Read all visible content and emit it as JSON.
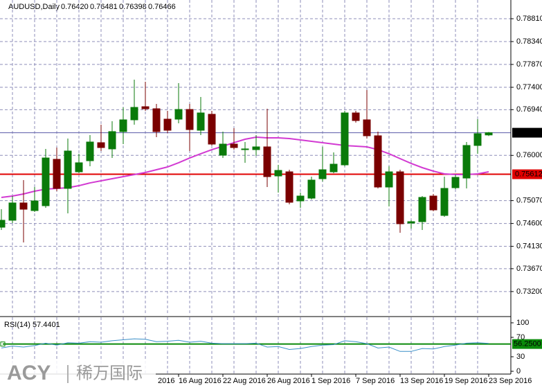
{
  "chart_data": {
    "type": "candlestick",
    "title": "AUDUSD,Daily",
    "header_values": [
      "0.76420",
      "0.76481",
      "0.76398",
      "0.76466"
    ],
    "categories": [
      null,
      null,
      null,
      null,
      null,
      null,
      null,
      null,
      null,
      null,
      null,
      null,
      "2016",
      null,
      null,
      null,
      "16 Aug 2016",
      null,
      null,
      null,
      "22 Aug 2016",
      null,
      null,
      null,
      "26 Aug 2016",
      null,
      null,
      null,
      "1 Sep 2016",
      null,
      null,
      null,
      "7 Sep 2016",
      null,
      null,
      null,
      "13 Sep 2016",
      null,
      null,
      null,
      "19 Sep 2016",
      null,
      null,
      null,
      "23 Sep 2016"
    ],
    "open": [
      0.74523,
      0.74666,
      0.75022,
      0.74865,
      0.74965,
      0.75919,
      0.75321,
      0.75662,
      0.7589,
      0.76261,
      0.76133,
      0.76489,
      0.76731,
      0.77001,
      0.76959,
      0.76745,
      0.76745,
      0.76944,
      0.76517,
      0.76845,
      0.76004,
      0.76232,
      0.76118,
      0.76118,
      0.76175,
      0.75577,
      0.75662,
      0.75064,
      0.75121,
      0.7552,
      0.75662,
      0.75805,
      0.76873,
      0.76731,
      0.76403,
      0.75349,
      0.75662,
      0.74609,
      0.74637,
      0.75164,
      0.74765,
      0.75335,
      0.75534,
      0.76204,
      0.7642
    ],
    "high": [
      0.74893,
      0.75164,
      0.75492,
      0.75349,
      0.76133,
      0.76161,
      0.76346,
      0.76033,
      0.76417,
      0.76631,
      0.76702,
      0.76987,
      0.77557,
      0.77514,
      0.77058,
      0.76916,
      0.77486,
      0.77058,
      0.77201,
      0.76916,
      0.76489,
      0.7656,
      0.76275,
      0.76417,
      0.76959,
      0.75805,
      0.75705,
      0.75235,
      0.75563,
      0.76175,
      0.76061,
      0.76916,
      0.76916,
      0.77343,
      0.76489,
      0.75776,
      0.75705,
      0.74666,
      0.75164,
      0.75207,
      0.75563,
      0.75605,
      0.76275,
      0.76745,
      0.76481
    ],
    "low": [
      0.74466,
      0.74609,
      0.7421,
      0.74837,
      0.74922,
      0.75264,
      0.74808,
      0.75634,
      0.75776,
      0.7609,
      0.75947,
      0.76232,
      0.76631,
      0.76916,
      0.76375,
      0.7646,
      0.76659,
      0.7609,
      0.76417,
      0.76204,
      0.75947,
      0.76118,
      0.75848,
      0.7599,
      0.75349,
      0.75235,
      0.74993,
      0.74922,
      0.75093,
      0.75463,
      0.75634,
      0.75776,
      0.76674,
      0.76346,
      0.75321,
      0.7495,
      0.74409,
      0.74495,
      0.74466,
      0.74851,
      0.74737,
      0.75306,
      0.75321,
      0.76033,
      0.76398
    ],
    "close": [
      0.74666,
      0.75022,
      0.74893,
      0.75064,
      0.75947,
      0.75321,
      0.7609,
      0.75848,
      0.76275,
      0.76161,
      0.76489,
      0.76731,
      0.76987,
      0.76959,
      0.76489,
      0.76517,
      0.76944,
      0.76531,
      0.76873,
      0.76232,
      0.76232,
      0.76161,
      0.76133,
      0.76175,
      0.75563,
      0.75691,
      0.75036,
      0.75164,
      0.75492,
      0.75705,
      0.75819,
      0.76873,
      0.76716,
      0.76403,
      0.75349,
      0.75662,
      0.74594,
      0.74637,
      0.75136,
      0.74879,
      0.75321,
      0.75549,
      0.76204,
      0.76446,
      0.76466
    ],
    "up_color": "#0a7a0a",
    "down_color": "#7a0000",
    "ma": {
      "color": "#d23ad2",
      "values": [
        0.75136,
        0.75164,
        0.75207,
        0.75264,
        0.75306,
        0.75321,
        0.75335,
        0.75377,
        0.75434,
        0.75477,
        0.7552,
        0.75563,
        0.75605,
        0.75648,
        0.75705,
        0.75762,
        0.75848,
        0.75947,
        0.76033,
        0.76118,
        0.76189,
        0.76261,
        0.76332,
        0.76375,
        0.7636,
        0.7636,
        0.76346,
        0.76318,
        0.76289,
        0.76261,
        0.76232,
        0.76204,
        0.76189,
        0.76175,
        0.76118,
        0.76033,
        0.75933,
        0.75834,
        0.75748,
        0.75677,
        0.7562,
        0.75605,
        0.75605,
        0.7562,
        0.75662
      ]
    },
    "lines": [
      {
        "value": 0.76466,
        "label": "0.76466",
        "color": "#5a5aa8",
        "label_bg": "#000000"
      },
      {
        "value": 0.75612,
        "label": "0.75612",
        "color": "#e00000",
        "label_bg": "#e00000"
      }
    ],
    "ylim": [
      0.72714,
      0.79195
    ],
    "yticks": [
      {
        "value": 0.7881,
        "label": "0.78810"
      },
      {
        "value": 0.7834,
        "label": "0.78340"
      },
      {
        "value": 0.7787,
        "label": "0.77870"
      },
      {
        "value": 0.774,
        "label": "0.77400"
      },
      {
        "value": 0.7694,
        "label": "0.76940"
      },
      {
        "value": 0.76,
        "label": "0.76000"
      },
      {
        "value": 0.7507,
        "label": "0.75070"
      },
      {
        "value": 0.746,
        "label": "0.74600"
      },
      {
        "value": 0.7413,
        "label": "0.74130"
      },
      {
        "value": 0.7367,
        "label": "0.73670"
      },
      {
        "value": 0.732,
        "label": "0.73200"
      }
    ],
    "grid": true,
    "rsi": {
      "title": "RSI(14) 57.4401",
      "color": "#3a8fc8",
      "ylim": [
        0,
        100
      ],
      "yticks": [
        0,
        30,
        70,
        100
      ],
      "level": {
        "value": 56.25,
        "label": "56.2500",
        "color": "#0a8a0a"
      },
      "values": [
        48,
        52,
        50,
        53,
        58,
        54,
        59,
        58,
        61,
        60,
        63,
        65,
        67,
        66,
        61,
        62,
        64,
        60,
        62,
        58,
        57,
        57,
        57,
        58,
        50,
        51,
        45,
        47,
        51,
        54,
        55,
        63,
        61,
        57,
        48,
        50,
        41,
        41,
        47,
        46,
        51,
        54,
        58,
        59,
        57.4401
      ]
    },
    "watermark": {
      "brand": "ACY",
      "name": "稀万国际"
    }
  }
}
